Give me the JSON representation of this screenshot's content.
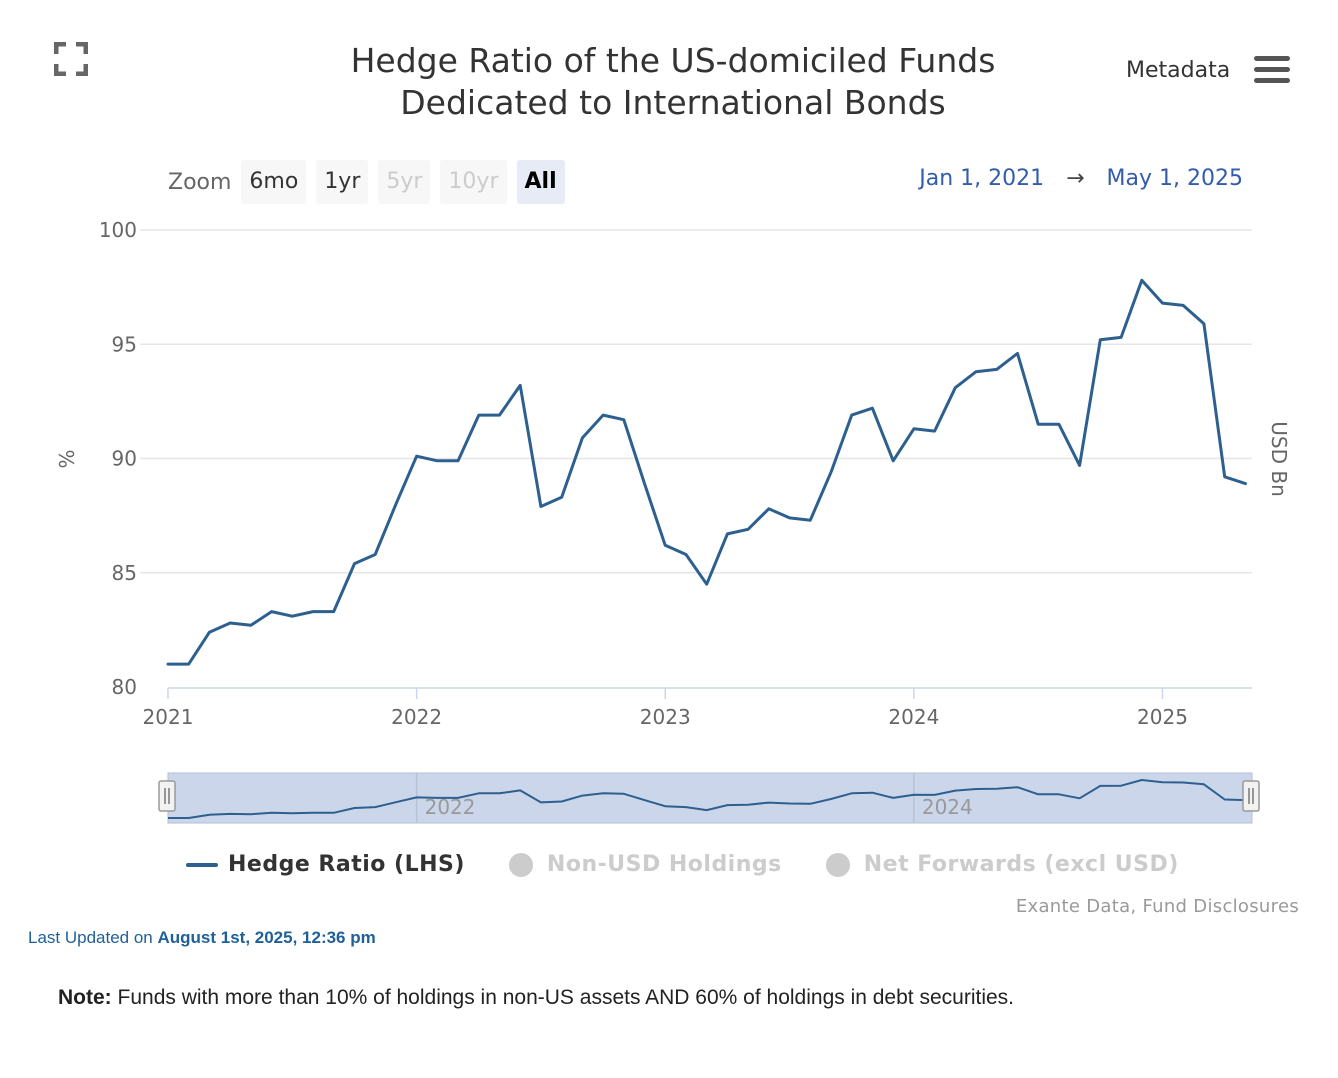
{
  "title": {
    "line1": "Hedge Ratio of the US-domiciled Funds",
    "line2": "Dedicated to International Bonds"
  },
  "metadata_label": "Metadata",
  "icons": {
    "fullscreen": "fullscreen-icon",
    "menu": "hamburger-icon"
  },
  "zoom": {
    "label": "Zoom",
    "buttons": [
      {
        "label": "6mo",
        "state": "enabled"
      },
      {
        "label": "1yr",
        "state": "enabled"
      },
      {
        "label": "5yr",
        "state": "disabled"
      },
      {
        "label": "10yr",
        "state": "disabled"
      },
      {
        "label": "All",
        "state": "active"
      }
    ]
  },
  "range": {
    "from": "Jan 1, 2021",
    "arrow": "→",
    "to": "May 1, 2025"
  },
  "chart_data": {
    "type": "line",
    "title": "Hedge Ratio of the US-domiciled Funds Dedicated to International Bonds",
    "ylabel_left": "%",
    "ylabel_right": "USD Bn",
    "ylim": [
      80,
      100
    ],
    "yticks": [
      80,
      85,
      90,
      95,
      100
    ],
    "xlim": [
      2021.0,
      2025.36
    ],
    "xticks": [
      2021,
      2022,
      2023,
      2024,
      2025
    ],
    "navigator_ticks": [
      2022,
      2024
    ],
    "grid": true,
    "series": [
      {
        "name": "Hedge Ratio (LHS)",
        "color": "#2d5f8f",
        "visible": true,
        "x": [
          "2021-01",
          "2021-02",
          "2021-03",
          "2021-04",
          "2021-05",
          "2021-06",
          "2021-07",
          "2021-08",
          "2021-09",
          "2021-10",
          "2021-11",
          "2021-12",
          "2022-01",
          "2022-02",
          "2022-03",
          "2022-04",
          "2022-05",
          "2022-06",
          "2022-07",
          "2022-08",
          "2022-09",
          "2022-10",
          "2022-11",
          "2022-12",
          "2023-01",
          "2023-02",
          "2023-03",
          "2023-04",
          "2023-05",
          "2023-06",
          "2023-07",
          "2023-08",
          "2023-09",
          "2023-10",
          "2023-11",
          "2023-12",
          "2024-01",
          "2024-02",
          "2024-03",
          "2024-04",
          "2024-05",
          "2024-06",
          "2024-07",
          "2024-08",
          "2024-09",
          "2024-10",
          "2024-11",
          "2024-12",
          "2025-01",
          "2025-02",
          "2025-03",
          "2025-04",
          "2025-05"
        ],
        "values": [
          81.0,
          81.0,
          82.4,
          82.8,
          82.7,
          83.3,
          83.1,
          83.3,
          83.3,
          85.4,
          85.8,
          88.0,
          90.1,
          89.9,
          89.9,
          91.9,
          91.9,
          93.2,
          87.9,
          88.3,
          90.9,
          91.9,
          91.7,
          88.9,
          86.2,
          85.8,
          84.5,
          86.7,
          86.9,
          87.8,
          87.4,
          87.3,
          89.4,
          91.9,
          92.2,
          89.9,
          91.3,
          91.2,
          93.1,
          93.8,
          93.9,
          94.6,
          91.5,
          91.5,
          89.7,
          95.2,
          95.3,
          97.8,
          96.8,
          96.7,
          95.9,
          89.2,
          88.9
        ]
      },
      {
        "name": "Non-USD Holdings",
        "color": "#cccccc",
        "visible": false
      },
      {
        "name": "Net Forwards (excl USD)",
        "color": "#cccccc",
        "visible": false
      }
    ]
  },
  "legend": [
    {
      "label": "Hedge Ratio (LHS)",
      "active": true
    },
    {
      "label": "Non-USD Holdings",
      "active": false
    },
    {
      "label": "Net Forwards (excl USD)",
      "active": false
    }
  ],
  "source": "Exante Data, Fund Disclosures",
  "last_updated": {
    "prefix": "Last Updated on ",
    "value": "August 1st, 2025, 12:36 pm"
  },
  "note": {
    "label": "Note:",
    "text": " Funds with more than 10% of holdings in non-US assets AND 60% of holdings in debt securities."
  },
  "colors": {
    "series": "#2d5f8f",
    "range_date": "#335cad",
    "navigator_fill": "#ccd6eb",
    "grid": "#e6e6e6",
    "inactive": "#cccccc",
    "last_updated": "#1f5f9a"
  }
}
